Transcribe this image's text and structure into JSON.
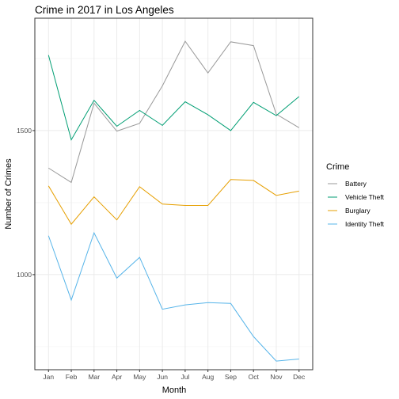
{
  "chart_data": {
    "type": "line",
    "title": "Crime in 2017 in Los Angeles",
    "xlabel": "Month",
    "ylabel": "Number of Crimes",
    "categories": [
      "Jan",
      "Feb",
      "Mar",
      "Apr",
      "May",
      "Jun",
      "Jul",
      "Aug",
      "Sep",
      "Oct",
      "Nov",
      "Dec"
    ],
    "ylim": [
      670,
      1890
    ],
    "yticks": [
      1000,
      1500
    ],
    "grid": true,
    "legend": {
      "title": "Crime",
      "position": "right"
    },
    "series": [
      {
        "name": "Battery",
        "color": "#999999",
        "values": [
          1370,
          1320,
          1595,
          1498,
          1525,
          1655,
          1810,
          1700,
          1808,
          1795,
          1557,
          1510
        ]
      },
      {
        "name": "Vehicle Theft",
        "color": "#009E73",
        "values": [
          1762,
          1468,
          1605,
          1515,
          1570,
          1518,
          1600,
          1555,
          1500,
          1598,
          1552,
          1618
        ]
      },
      {
        "name": "Burglary",
        "color": "#E69F00",
        "values": [
          1308,
          1175,
          1270,
          1190,
          1305,
          1245,
          1240,
          1240,
          1330,
          1327,
          1275,
          1290
        ]
      },
      {
        "name": "Identity Theft",
        "color": "#56B4E9",
        "values": [
          1135,
          912,
          1145,
          988,
          1060,
          880,
          895,
          903,
          900,
          785,
          700,
          707
        ]
      }
    ]
  }
}
